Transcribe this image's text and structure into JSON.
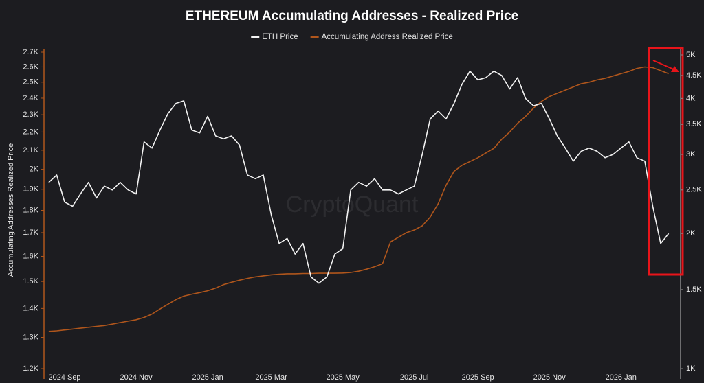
{
  "chart_data": {
    "type": "line",
    "title": "ETHEREUM Accumulating Addresses - Realized Price",
    "ylabel": "Accumulating Addresses Realized Price",
    "watermark": "CryptoQuant",
    "legend": "top",
    "ylog": true,
    "y2log": true,
    "ylim": [
      1200,
      2700
    ],
    "yticks": [
      {
        "value": 1200,
        "label": "1.2K"
      },
      {
        "value": 1300,
        "label": "1.3K"
      },
      {
        "value": 1400,
        "label": "1.4K"
      },
      {
        "value": 1500,
        "label": "1.5K"
      },
      {
        "value": 1600,
        "label": "1.6K"
      },
      {
        "value": 1700,
        "label": "1.7K"
      },
      {
        "value": 1800,
        "label": "1.8K"
      },
      {
        "value": 1900,
        "label": "1.9K"
      },
      {
        "value": 2000,
        "label": "2K"
      },
      {
        "value": 2100,
        "label": "2.1K"
      },
      {
        "value": 2200,
        "label": "2.2K"
      },
      {
        "value": 2300,
        "label": "2.3K"
      },
      {
        "value": 2400,
        "label": "2.4K"
      },
      {
        "value": 2500,
        "label": "2.5K"
      },
      {
        "value": 2600,
        "label": "2.6K"
      },
      {
        "value": 2700,
        "label": "2.7K"
      }
    ],
    "y2lim": [
      1000,
      5000
    ],
    "y2ticks": [
      {
        "value": 1000,
        "label": "1K"
      },
      {
        "value": 1500,
        "label": "1.5K"
      },
      {
        "value": 2000,
        "label": "2K"
      },
      {
        "value": 2500,
        "label": "2.5K"
      },
      {
        "value": 3000,
        "label": "3K"
      },
      {
        "value": 3500,
        "label": "3.5K"
      },
      {
        "value": 4000,
        "label": "4K"
      },
      {
        "value": 4500,
        "label": "4.5K"
      },
      {
        "value": 5000,
        "label": "5K"
      }
    ],
    "categories": [
      null,
      null,
      "2024 Sep",
      null,
      null,
      null,
      null,
      null,
      null,
      null,
      null,
      "2024 Nov",
      null,
      null,
      null,
      null,
      null,
      null,
      null,
      null,
      "2025 Jan",
      null,
      null,
      null,
      null,
      null,
      null,
      null,
      "2025 Mar",
      null,
      null,
      null,
      null,
      null,
      null,
      null,
      null,
      "2025 May",
      null,
      null,
      null,
      null,
      null,
      null,
      null,
      null,
      "2025 Jul",
      null,
      null,
      null,
      null,
      null,
      null,
      null,
      "2025 Sep",
      null,
      null,
      null,
      null,
      null,
      null,
      null,
      null,
      "2025 Nov",
      null,
      null,
      null,
      null,
      null,
      null,
      null,
      null,
      "2026 Jan",
      null,
      null,
      null,
      null,
      null,
      null
    ],
    "series": [
      {
        "name": "ETH Price",
        "color": "#f2f2f2",
        "axis": "y2",
        "values": [
          2600,
          2700,
          2350,
          2300,
          2450,
          2600,
          2400,
          2550,
          2500,
          2600,
          2500,
          2450,
          3200,
          3100,
          3400,
          3700,
          3900,
          3950,
          3400,
          3350,
          3650,
          3300,
          3250,
          3300,
          3150,
          2700,
          2650,
          2700,
          2200,
          1900,
          1950,
          1800,
          1900,
          1600,
          1550,
          1600,
          1800,
          1850,
          2500,
          2600,
          2550,
          2650,
          2500,
          2500,
          2450,
          2500,
          2550,
          3000,
          3600,
          3750,
          3600,
          3900,
          4300,
          4600,
          4400,
          4450,
          4600,
          4500,
          4200,
          4450,
          4000,
          3850,
          3900,
          3600,
          3300,
          3100,
          2900,
          3050,
          3100,
          3050,
          2950,
          3000,
          3100,
          3200,
          2950,
          2900,
          2300,
          1900,
          2000
        ]
      },
      {
        "name": "Accumulating Address Realized Price",
        "color": "#b0561c",
        "axis": "y",
        "values": [
          1320,
          1322,
          1325,
          1328,
          1331,
          1334,
          1337,
          1340,
          1345,
          1350,
          1355,
          1360,
          1368,
          1380,
          1398,
          1415,
          1432,
          1445,
          1452,
          1458,
          1465,
          1475,
          1488,
          1497,
          1505,
          1512,
          1518,
          1522,
          1526,
          1528,
          1530,
          1530,
          1531,
          1531,
          1532,
          1532,
          1532,
          1533,
          1535,
          1540,
          1548,
          1558,
          1570,
          1660,
          1680,
          1700,
          1712,
          1730,
          1770,
          1830,
          1920,
          1990,
          2020,
          2040,
          2060,
          2085,
          2110,
          2160,
          2200,
          2250,
          2290,
          2340,
          2380,
          2410,
          2430,
          2450,
          2470,
          2490,
          2500,
          2515,
          2525,
          2540,
          2555,
          2570,
          2590,
          2600,
          2595,
          2575,
          2555
        ]
      }
    ]
  }
}
